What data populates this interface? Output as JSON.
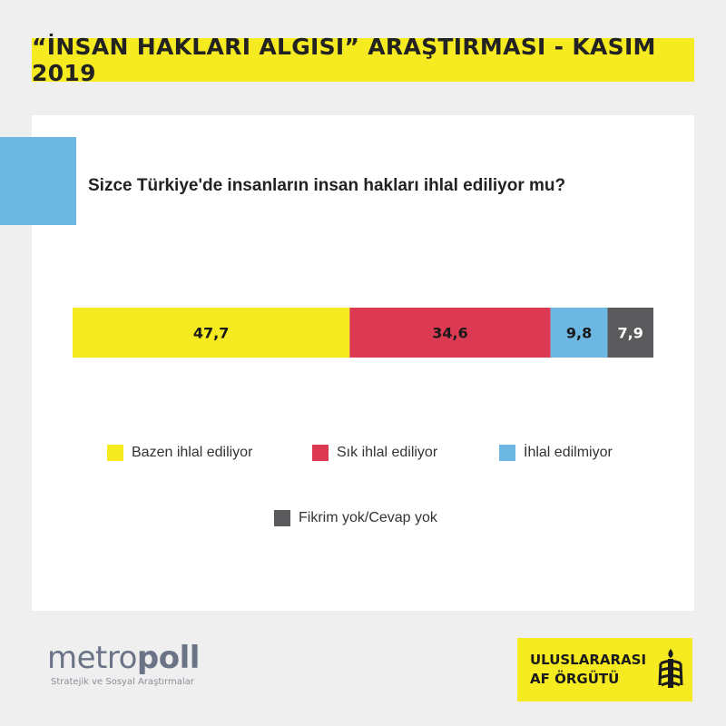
{
  "title": "“İNSAN HAKLARI ALGISI” ARAŞTIRMASI - KASIM 2019",
  "question": "Sizce Türkiye'de insanların insan hakları ihlal ediliyor mu?",
  "colors": {
    "banner": "#f6eb20",
    "accent": "#6cb8e3",
    "series": [
      "#f6eb20",
      "#dc3a52",
      "#6cb8e3",
      "#5a5a5c"
    ]
  },
  "chart_data": {
    "type": "bar",
    "orientation": "horizontal-stacked",
    "series": [
      {
        "name": "Bazen ihlal ediliyor",
        "value": 47.7,
        "label": "47,7"
      },
      {
        "name": "Sık ihlal ediliyor",
        "value": 34.6,
        "label": "34,6"
      },
      {
        "name": "İhlal edilmiyor",
        "value": 9.8,
        "label": "9,8"
      },
      {
        "name": "Fikrim yok/Cevap yok",
        "value": 7.9,
        "label": "7,9"
      }
    ],
    "legend_position": "bottom"
  },
  "footer": {
    "metropoll_left": "metro",
    "metropoll_right": "poll",
    "metropoll_sub": "Stratejik ve Sosyal Araştırmalar",
    "amnesty_line1": "ULUSLARARASI",
    "amnesty_line2": "AF ÖRGÜTÜ",
    "amnesty_icon": "candle-in-barbed-wire-icon"
  }
}
